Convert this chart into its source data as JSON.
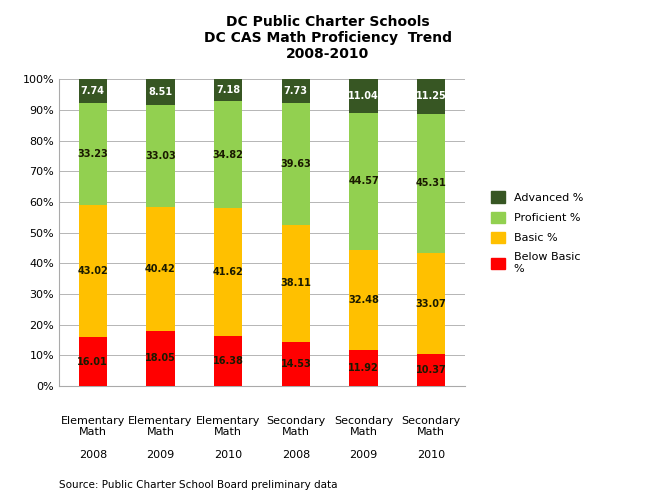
{
  "title_line1": "DC Public Charter Schools",
  "title_line2": "DC CAS Math Proficiency  Trend",
  "title_line3": "2008-2010",
  "cat_line1": [
    "Elementary",
    "Elementary",
    "Elementary",
    "Secondary",
    "Secondary",
    "Secondary"
  ],
  "cat_line2": [
    "Math",
    "Math",
    "Math",
    "Math",
    "Math",
    "Math"
  ],
  "cat_year": [
    "2008",
    "2009",
    "2010",
    "2008",
    "2009",
    "2010"
  ],
  "below_basic": [
    16.01,
    18.05,
    16.38,
    14.53,
    11.92,
    10.37
  ],
  "basic": [
    43.02,
    40.42,
    41.62,
    38.11,
    32.48,
    33.07
  ],
  "proficient": [
    33.23,
    33.03,
    34.82,
    39.63,
    44.57,
    45.31
  ],
  "advanced": [
    7.74,
    8.51,
    7.18,
    7.73,
    11.04,
    11.25
  ],
  "color_below_basic": "#FF0000",
  "color_basic": "#FFC000",
  "color_proficient": "#92D050",
  "color_advanced": "#375623",
  "source_text": "Source: Public Charter School Board preliminary data",
  "ylim": [
    0,
    100
  ],
  "bar_width": 0.42
}
